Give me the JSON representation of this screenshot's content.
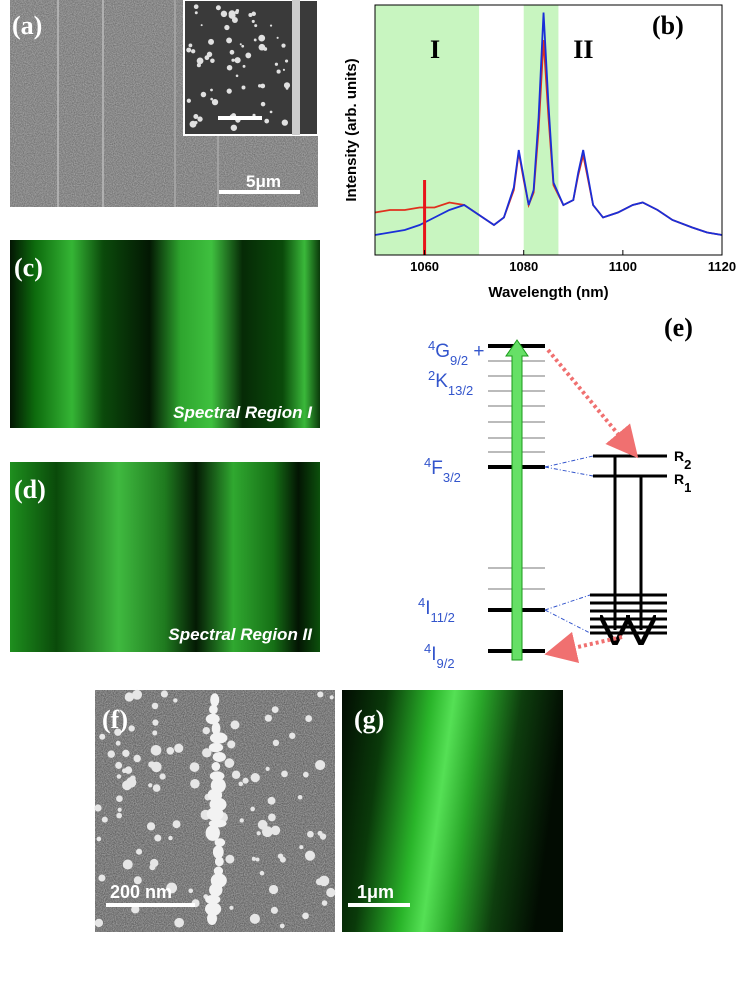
{
  "panels": {
    "a": {
      "label": "(a)",
      "scale": "5μm"
    },
    "c": {
      "label": "(c)",
      "caption": "Spectral Region I"
    },
    "d": {
      "label": "(d)",
      "caption": "Spectral Region II"
    },
    "e": {
      "label": "(e)",
      "levels": [
        {
          "sup": "4",
          "main": "G",
          "sub": "9/2",
          "suffix": " +"
        },
        {
          "sup": "2",
          "main": "K",
          "sub": "13/2"
        },
        {
          "sup": "4",
          "main": "F",
          "sub": "3/2"
        },
        {
          "sup": "4",
          "main": "I",
          "sub": "11/2"
        },
        {
          "sup": "4",
          "main": "I",
          "sub": "9/2"
        }
      ],
      "sublevels": [
        {
          "main": "R",
          "sub": "2"
        },
        {
          "main": "R",
          "sub": "1"
        }
      ]
    },
    "f": {
      "label": "(f)",
      "scale": "200 nm"
    },
    "g": {
      "label": "(g)",
      "scale": "1μm"
    }
  },
  "chart_data": {
    "type": "line",
    "label": "(b)",
    "x_label": "Wavelength (nm)",
    "y_label": "Intensity (arb. units)",
    "x": [
      1050,
      1053,
      1056,
      1059,
      1062,
      1065,
      1068,
      1071,
      1074,
      1076,
      1078,
      1079,
      1080,
      1081,
      1082,
      1083,
      1084,
      1085,
      1086,
      1088,
      1090,
      1091,
      1092,
      1093,
      1094,
      1096,
      1099,
      1102,
      1104,
      1107,
      1110,
      1114,
      1117,
      1120
    ],
    "series": [
      {
        "name": "Spectral Region I",
        "color": "#e0301e",
        "values": [
          17,
          18,
          18,
          19,
          19,
          21,
          20,
          16,
          12,
          15,
          26,
          41,
          30,
          20,
          25,
          50,
          86,
          55,
          28,
          20,
          22,
          32,
          40,
          30,
          20,
          15,
          17,
          20,
          21,
          18,
          14,
          11,
          9,
          8
        ]
      },
      {
        "name": "Spectral Region II",
        "color": "#1a2fd8",
        "values": [
          8,
          9,
          10,
          12,
          15,
          18,
          20,
          16,
          12,
          15,
          27,
          42,
          31,
          20,
          26,
          55,
          97,
          60,
          29,
          20,
          22,
          33,
          42,
          31,
          20,
          15,
          17,
          20,
          21,
          18,
          14,
          11,
          9,
          8
        ]
      }
    ],
    "xlim": [
      1050,
      1120
    ],
    "xticks": [
      1060,
      1080,
      1100,
      1120
    ],
    "ylim": [
      0,
      100
    ],
    "regions": [
      {
        "label": "I",
        "range": [
          1050,
          1071
        ],
        "color": "#c8f5c0"
      },
      {
        "label": "II",
        "range": [
          1080,
          1087
        ],
        "color": "#c8f5c0"
      }
    ],
    "marker": {
      "x": 1060,
      "color": "#e8141b"
    }
  }
}
